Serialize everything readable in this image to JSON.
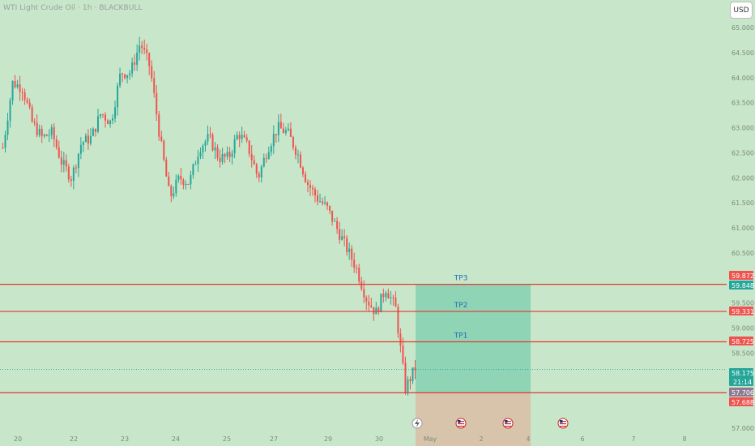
{
  "header": {
    "title": "WTI Light Crude Oil · 1h · BLACKBULL",
    "currency": "USD"
  },
  "colors": {
    "background": "#c8e6c9",
    "up": "#26a69a",
    "down": "#ef5350",
    "line": "#e53935",
    "profit_zone": "#8fd4b5",
    "loss_zone": "#d7c4ab"
  },
  "icons": {
    "lightning": "lightning-icon",
    "flag": "us-flag-icon"
  },
  "chart_data": {
    "type": "candlestick",
    "symbol": "WTI Light Crude Oil",
    "interval": "1h",
    "broker": "BLACKBULL",
    "ylim": [
      56.9,
      65.25
    ],
    "y_ticks": [
      "65.000",
      "64.500",
      "64.000",
      "63.500",
      "63.000",
      "62.500",
      "62.000",
      "61.500",
      "61.000",
      "60.500",
      "59.500",
      "59.000",
      "58.500",
      "57.000"
    ],
    "x_ticks": [
      "20",
      "22",
      "23",
      "24",
      "25",
      "27",
      "29",
      "30",
      "May",
      "2",
      "4",
      "6",
      "7",
      "8"
    ],
    "levels": [
      {
        "price": 59.872,
        "label": "59.872",
        "role": "TP3"
      },
      {
        "price": 59.331,
        "label": "59.331",
        "role": "TP2"
      },
      {
        "price": 58.725,
        "label": "58.725",
        "role": "TP1"
      },
      {
        "price": 57.706,
        "label": "57.706",
        "role": "entry"
      }
    ],
    "targets": [
      "TP3",
      "TP2",
      "TP1"
    ],
    "price_badges": [
      {
        "label": "59.872",
        "color": "#ef5350"
      },
      {
        "label": "59.848",
        "color": "#26a69a"
      },
      {
        "label": "59.331",
        "color": "#ef5350"
      },
      {
        "label": "58.725",
        "color": "#ef5350"
      },
      {
        "label": "58.175",
        "sub": "21:14",
        "color": "#26a69a"
      },
      {
        "label": "57.706",
        "color": "#8e7a93"
      },
      {
        "label": "57.688",
        "color": "#ef5350"
      }
    ],
    "current_price": 58.175,
    "countdown": "21:14",
    "position": {
      "entry": 57.706,
      "target": 59.872,
      "stop": 56.9
    },
    "price_path": [
      {
        "t": 0,
        "p": 62.6
      },
      {
        "t": 1,
        "p": 63.9
      },
      {
        "t": 2,
        "p": 63.8
      },
      {
        "t": 3,
        "p": 63.1
      },
      {
        "t": 4,
        "p": 62.8
      },
      {
        "t": 5,
        "p": 62.9
      },
      {
        "t": 6,
        "p": 62.3
      },
      {
        "t": 7,
        "p": 62.0
      },
      {
        "t": 8,
        "p": 62.7
      },
      {
        "t": 9,
        "p": 62.8
      },
      {
        "t": 10,
        "p": 63.3
      },
      {
        "t": 11,
        "p": 63.1
      },
      {
        "t": 12,
        "p": 64.1
      },
      {
        "t": 13,
        "p": 64.1
      },
      {
        "t": 14,
        "p": 64.7
      },
      {
        "t": 15,
        "p": 64.2
      },
      {
        "t": 16,
        "p": 62.8
      },
      {
        "t": 17,
        "p": 61.6
      },
      {
        "t": 18,
        "p": 62.0
      },
      {
        "t": 19,
        "p": 61.9
      },
      {
        "t": 20,
        "p": 62.6
      },
      {
        "t": 21,
        "p": 62.8
      },
      {
        "t": 22,
        "p": 62.4
      },
      {
        "t": 23,
        "p": 62.4
      },
      {
        "t": 24,
        "p": 62.9
      },
      {
        "t": 25,
        "p": 62.6
      },
      {
        "t": 26,
        "p": 62.0
      },
      {
        "t": 27,
        "p": 62.6
      },
      {
        "t": 28,
        "p": 63.0
      },
      {
        "t": 29,
        "p": 62.9
      },
      {
        "t": 30,
        "p": 62.5
      },
      {
        "t": 31,
        "p": 61.9
      },
      {
        "t": 32,
        "p": 61.6
      },
      {
        "t": 33,
        "p": 61.4
      },
      {
        "t": 34,
        "p": 61.0
      },
      {
        "t": 35,
        "p": 60.6
      },
      {
        "t": 36,
        "p": 60.2
      },
      {
        "t": 37,
        "p": 59.6
      },
      {
        "t": 38,
        "p": 59.3
      },
      {
        "t": 39,
        "p": 59.8
      },
      {
        "t": 40,
        "p": 59.4
      },
      {
        "t": 41,
        "p": 57.8
      },
      {
        "t": 42,
        "p": 58.2
      }
    ]
  }
}
